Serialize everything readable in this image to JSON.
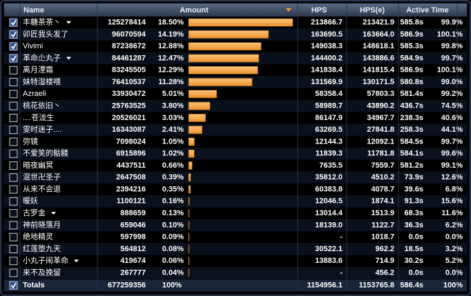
{
  "header": {
    "name": "Name",
    "amount": "Amount",
    "hps": "HPS",
    "hpse": "HPS(e)",
    "active_time": "Active Time"
  },
  "rows": [
    {
      "name": "丰糖茶茶丶",
      "color": "#8f86ef",
      "checked": true,
      "expandable": true,
      "amount": 125278414,
      "percent": "18.50%",
      "hps": "213866.7",
      "hpse": "213421.9",
      "time": "585.8s",
      "active": "99.9%"
    },
    {
      "name": "卯匠我头发了",
      "color": "#abd473",
      "checked": true,
      "expandable": false,
      "amount": 96070594,
      "percent": "14.19%",
      "hps": "163690.5",
      "hpse": "163664.0",
      "time": "586.9s",
      "active": "100.1%"
    },
    {
      "name": "Vivimi",
      "color": "#abd473",
      "checked": true,
      "expandable": false,
      "amount": 87238672,
      "percent": "12.88%",
      "hps": "149038.3",
      "hpse": "148618.1",
      "time": "585.3s",
      "active": "99.8%"
    },
    {
      "name": "革命尐丸子",
      "color": "#3f8fef",
      "checked": true,
      "expandable": true,
      "amount": 84461287,
      "percent": "12.47%",
      "hps": "144400.2",
      "hpse": "143886.6",
      "time": "584.9s",
      "active": "99.7%"
    },
    {
      "name": "离月湮霜",
      "color": "#ffffff",
      "checked": false,
      "expandable": false,
      "amount": 83245505,
      "percent": "12.29%",
      "hps": "141838.4",
      "hpse": "141815.4",
      "time": "586.9s",
      "active": "100.1%"
    },
    {
      "name": "妹特湿楼喂",
      "color": "#f58cba",
      "checked": false,
      "expandable": false,
      "amount": 76410537,
      "percent": "11.28%",
      "hps": "131569.9",
      "hpse": "130171.5",
      "time": "580.8s",
      "active": "99.0%"
    },
    {
      "name": "Azraeli",
      "color": "#f58cba",
      "checked": false,
      "expandable": false,
      "amount": 33930472,
      "percent": "5.01%",
      "hps": "58358.4",
      "hpse": "57803.3",
      "time": "581.4s",
      "active": "99.2%"
    },
    {
      "name": "桃花依旧丶",
      "color": "#c79c6e",
      "checked": false,
      "expandable": false,
      "amount": 25763525,
      "percent": "3.80%",
      "hps": "58989.7",
      "hpse": "43890.2",
      "time": "436.7s",
      "active": "74.5%"
    },
    {
      "name": "....苍泷生",
      "color": "#ffffff",
      "checked": false,
      "expandable": false,
      "amount": 20526021,
      "percent": "3.03%",
      "hps": "86147.9",
      "hpse": "34967.7",
      "time": "238.3s",
      "active": "40.6%"
    },
    {
      "name": "雯时迷子....",
      "color": "#ffffff",
      "checked": false,
      "expandable": false,
      "amount": 16343087,
      "percent": "2.41%",
      "hps": "63269.5",
      "hpse": "27841.8",
      "time": "258.3s",
      "active": "44.1%"
    },
    {
      "name": "弥镜",
      "color": "#9482c9",
      "checked": false,
      "expandable": false,
      "amount": 7098024,
      "percent": "1.05%",
      "hps": "12144.3",
      "hpse": "12092.1",
      "time": "584.5s",
      "active": "99.7%"
    },
    {
      "name": "不爱笑的骷髅",
      "color": "#9482c9",
      "checked": false,
      "expandable": false,
      "amount": 6915896,
      "percent": "1.02%",
      "hps": "11839.3",
      "hpse": "11781.8",
      "time": "584.1s",
      "active": "99.6%"
    },
    {
      "name": "暗夜幽冥",
      "color": "#9482c9",
      "checked": false,
      "expandable": false,
      "amount": 4437511,
      "percent": "0.66%",
      "hps": "7635.5",
      "hpse": "7559.7",
      "time": "581.2s",
      "active": "99.1%"
    },
    {
      "name": "混世卍圣子",
      "color": "#9482c9",
      "checked": false,
      "expandable": false,
      "amount": 2647508,
      "percent": "0.39%",
      "hps": "35812.0",
      "hpse": "4510.2",
      "time": "73.9s",
      "active": "12.6%"
    },
    {
      "name": "从来不会退",
      "color": "#d8374f",
      "checked": false,
      "expandable": false,
      "amount": 2394216,
      "percent": "0.35%",
      "hps": "60383.8",
      "hpse": "4078.7",
      "time": "39.6s",
      "active": "6.8%"
    },
    {
      "name": "暖妖",
      "color": "#f58cba",
      "checked": false,
      "expandable": false,
      "amount": 1100121,
      "percent": "0.16%",
      "hps": "12046.5",
      "hpse": "1874.1",
      "time": "91.3s",
      "active": "15.6%"
    },
    {
      "name": "古罗金",
      "color": "#ffffff",
      "checked": false,
      "expandable": true,
      "amount": 888659,
      "percent": "0.13%",
      "hps": "13014.4",
      "hpse": "1513.9",
      "time": "68.3s",
      "active": "11.6%"
    },
    {
      "name": "神前晓落月",
      "color": "#ff7d0a",
      "checked": false,
      "expandable": false,
      "amount": 659046,
      "percent": "0.10%",
      "hps": "18139.0",
      "hpse": "1122.7",
      "time": "36.3s",
      "active": "6.2%"
    },
    {
      "name": "绝地精灵",
      "color": "#ffffff",
      "checked": false,
      "expandable": false,
      "amount": 597998,
      "percent": "0.09%",
      "hps": "-",
      "hpse": "1018.7",
      "time": "0.0s",
      "active": "0.0%"
    },
    {
      "name": "红莲堕九天",
      "color": "#b8a8ef",
      "checked": false,
      "expandable": false,
      "amount": 564812,
      "percent": "0.08%",
      "hps": "30522.1",
      "hpse": "962.2",
      "time": "18.5s",
      "active": "3.2%"
    },
    {
      "name": "小丸子闹革命",
      "color": "#ffffff",
      "checked": false,
      "expandable": true,
      "amount": 419674,
      "percent": "0.06%",
      "hps": "13883.6",
      "hpse": "714.9",
      "time": "30.2s",
      "active": "5.2%"
    },
    {
      "name": "来不及挽留",
      "color": "#fff569",
      "checked": false,
      "expandable": false,
      "amount": 267777,
      "percent": "0.04%",
      "hps": "-",
      "hpse": "456.2",
      "time": "0.0s",
      "active": "0.0%"
    }
  ],
  "totals": {
    "name": "Totals",
    "checked": true,
    "amount": 677259356,
    "percent": "100%",
    "hps": "1154956.1",
    "hpse": "1153765.8",
    "time": "586.4s",
    "active": "100%"
  }
}
